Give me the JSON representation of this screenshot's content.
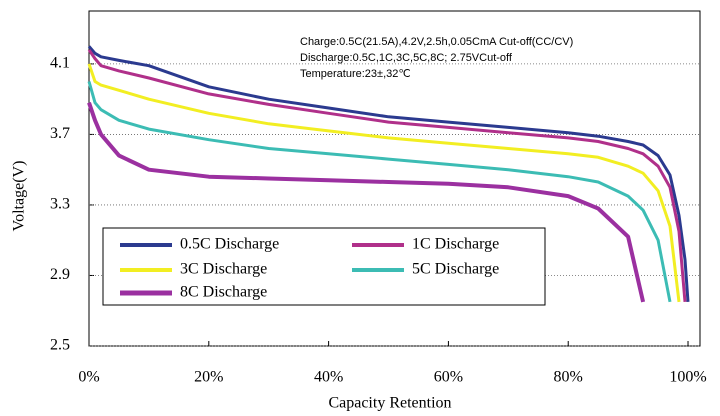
{
  "chart_data": {
    "type": "line",
    "xlabel": "Capacity Retention",
    "ylabel": "Voltage(V)",
    "annotations": [
      "Charge:0.5C(21.5A),4.2V,2.5h,0.05CmA Cut-off(CC/CV)",
      "Discharge:0.5C,1C,3C,5C,8C; 2.75VCut-off",
      "Temperature:23±,32℃"
    ],
    "x": [
      0,
      1,
      2,
      5,
      10,
      20,
      30,
      40,
      50,
      60,
      70,
      80,
      85,
      90,
      92.5,
      95,
      97,
      98.5,
      99.5,
      100
    ],
    "series": [
      {
        "name": "0.5C Discharge",
        "color": "#2b3a8f",
        "values": [
          4.2,
          4.16,
          4.14,
          4.12,
          4.09,
          3.97,
          3.9,
          3.85,
          3.8,
          3.77,
          3.74,
          3.71,
          3.69,
          3.66,
          3.64,
          3.58,
          3.47,
          3.24,
          2.99,
          2.75
        ]
      },
      {
        "name": "1C Discharge",
        "color": "#b0308a",
        "values": [
          4.18,
          4.13,
          4.09,
          4.06,
          4.02,
          3.93,
          3.87,
          3.82,
          3.77,
          3.74,
          3.71,
          3.68,
          3.66,
          3.62,
          3.59,
          3.52,
          3.4,
          3.15,
          2.75,
          null
        ]
      },
      {
        "name": "3C Discharge",
        "color": "#f2ee22",
        "values": [
          4.1,
          4.0,
          3.98,
          3.95,
          3.9,
          3.82,
          3.76,
          3.72,
          3.68,
          3.65,
          3.62,
          3.59,
          3.57,
          3.52,
          3.48,
          3.38,
          3.18,
          2.75,
          null,
          null
        ]
      },
      {
        "name": "5C Discharge",
        "color": "#3cbcb4",
        "values": [
          4.0,
          3.88,
          3.84,
          3.78,
          3.73,
          3.67,
          3.62,
          3.59,
          3.56,
          3.53,
          3.5,
          3.46,
          3.43,
          3.35,
          3.27,
          3.1,
          2.75,
          null,
          null,
          null
        ]
      },
      {
        "name": "8C Discharge",
        "color": "#9b30a0",
        "values": [
          3.88,
          3.78,
          3.7,
          3.58,
          3.5,
          3.46,
          3.45,
          3.44,
          3.43,
          3.42,
          3.4,
          3.35,
          3.28,
          3.12,
          2.75,
          null,
          null,
          null,
          null,
          null
        ]
      }
    ],
    "xlim": [
      0,
      102
    ],
    "ylim": [
      2.5,
      4.4
    ],
    "xticks": [
      {
        "value": 0,
        "label": "0%"
      },
      {
        "value": 20,
        "label": "20%"
      },
      {
        "value": 40,
        "label": "40%"
      },
      {
        "value": 60,
        "label": "60%"
      },
      {
        "value": 80,
        "label": "80%"
      },
      {
        "value": 100,
        "label": "100%"
      }
    ],
    "yticks": [
      2.5,
      2.9,
      3.3,
      3.7,
      4.1
    ],
    "grid": true
  }
}
